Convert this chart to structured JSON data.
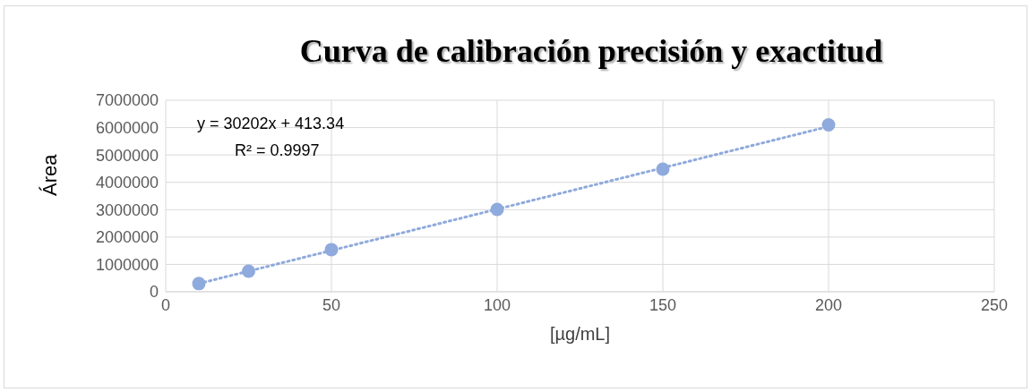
{
  "chart_data": {
    "type": "scatter",
    "title": "Curva de calibración precisión y exactitud",
    "xlabel": "[µg/mL]",
    "ylabel": "Área",
    "annotations": [
      "y = 30202x + 413.34",
      "R² = 0.9997"
    ],
    "series": [
      {
        "color": "#8faadc",
        "marker": "circle",
        "x": [
          10,
          25,
          50,
          100,
          150,
          200
        ],
        "values": [
          300000,
          750000,
          1540000,
          3010000,
          4480000,
          6100000
        ]
      },
      {
        "type": "line",
        "color": "#8faadc",
        "marker": "none",
        "line_style": "dotted",
        "x": [
          10,
          200
        ],
        "values": [
          300000,
          6040000
        ]
      }
    ],
    "xlim": [
      0,
      250
    ],
    "xticks": [
      0,
      50,
      100,
      150,
      200,
      250
    ],
    "ylim": [
      0,
      7000000
    ],
    "yticks": [
      0,
      1000000,
      2000000,
      3000000,
      4000000,
      5000000,
      6000000,
      7000000
    ],
    "grid": true
  }
}
